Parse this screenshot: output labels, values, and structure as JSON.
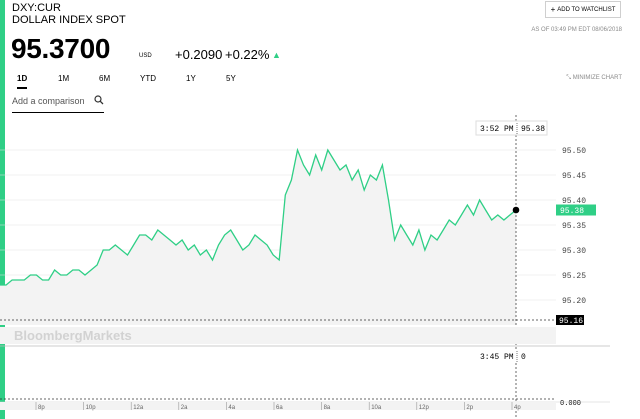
{
  "header": {
    "ticker": "DXY:CUR",
    "name": "DOLLAR INDEX SPOT",
    "watchlist_label": "ADD TO WATCHLIST",
    "as_of": "AS OF 03:49 PM EDT 08/06/2018",
    "price": "95.3700",
    "currency": "USD",
    "change_abs": "+0.2090",
    "change_pct": "+0.22%"
  },
  "ranges": [
    "1D",
    "1M",
    "6M",
    "YTD",
    "1Y",
    "5Y"
  ],
  "active_range": "1D",
  "minimize_label": "MINIMIZE CHART",
  "compare": {
    "placeholder": "Add a comparison"
  },
  "chart_data": {
    "type": "area",
    "x_ticks": [
      "8p",
      "10p",
      "12a",
      "2a",
      "4a",
      "6a",
      "8a",
      "10a",
      "12p",
      "2p",
      "4p"
    ],
    "y_ticks": [
      "95.50",
      "95.45",
      "95.40",
      "95.35",
      "95.30",
      "95.25",
      "95.20"
    ],
    "ylim": [
      95.15,
      95.53
    ],
    "values": [
      95.23,
      95.23,
      95.24,
      95.24,
      95.24,
      95.25,
      95.25,
      95.24,
      95.24,
      95.26,
      95.25,
      95.25,
      95.26,
      95.26,
      95.25,
      95.26,
      95.27,
      95.3,
      95.3,
      95.31,
      95.3,
      95.29,
      95.31,
      95.33,
      95.33,
      95.32,
      95.34,
      95.33,
      95.32,
      95.31,
      95.32,
      95.3,
      95.31,
      95.29,
      95.3,
      95.28,
      95.31,
      95.33,
      95.34,
      95.32,
      95.3,
      95.31,
      95.33,
      95.32,
      95.31,
      95.29,
      95.28,
      95.41,
      95.44,
      95.5,
      95.47,
      95.45,
      95.49,
      95.46,
      95.5,
      95.48,
      95.46,
      95.47,
      95.44,
      95.46,
      95.42,
      95.45,
      95.44,
      95.47,
      95.4,
      95.32,
      95.35,
      95.33,
      95.31,
      95.34,
      95.3,
      95.33,
      95.32,
      95.34,
      95.36,
      95.35,
      95.37,
      95.39,
      95.37,
      95.4,
      95.38,
      95.36,
      95.37,
      95.36,
      95.37,
      95.38
    ],
    "last_value": "95.38",
    "last_time": "3:52 PM",
    "previous_close": "95.16",
    "volume_time": "3:45 PM",
    "volume_value": "0",
    "volume_axis": "0.000",
    "watermark": "BloombergMarkets",
    "colors": {
      "line": "#2fcf86",
      "fill": "#f3f3f3",
      "accent": "#2fcf86"
    }
  }
}
